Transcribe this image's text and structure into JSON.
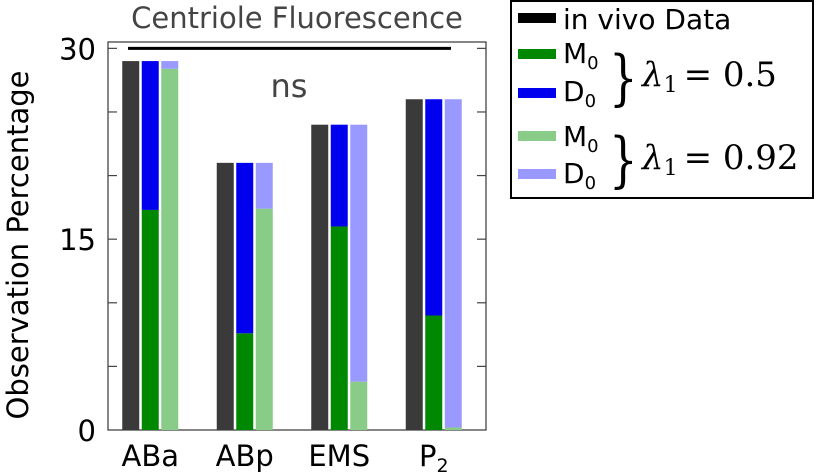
{
  "chart_data": {
    "type": "bar",
    "title": "Centriole Fluorescence",
    "ylabel": "Observation Percentage",
    "xlabel": "",
    "ylim": [
      0,
      30.5
    ],
    "yticks": [
      0,
      15,
      30
    ],
    "grid": false,
    "legend_position": "right",
    "categories": [
      "ABa",
      "ABp",
      "EMS",
      "P"
    ],
    "category_subscripts": [
      "",
      "",
      "",
      "2"
    ],
    "annotation": {
      "text": "ns",
      "line_value": 30
    },
    "series": [
      {
        "name": "in vivo Data",
        "color": "#3a3a3a",
        "values": [
          29,
          21,
          24,
          26
        ]
      },
      {
        "group": "λ1 = 0.5",
        "stack": [
          {
            "name": "M",
            "subscript": "0",
            "color": "#008800",
            "values": [
              17.3,
              7.6,
              16.0,
              9.0
            ]
          },
          {
            "name": "D",
            "subscript": "0",
            "color": "#0000ee",
            "values": [
              11.7,
              13.4,
              8.0,
              17.0
            ]
          }
        ]
      },
      {
        "group": "λ1 = 0.92",
        "stack": [
          {
            "name": "M",
            "subscript": "0",
            "color": "#88cc88",
            "values": [
              28.4,
              17.4,
              3.8,
              0.2
            ]
          },
          {
            "name": "D",
            "subscript": "0",
            "color": "#9999ff",
            "values": [
              0.6,
              3.6,
              20.2,
              25.8
            ]
          }
        ]
      }
    ]
  },
  "legend": {
    "in_vivo": "in vivo Data",
    "m0": "M",
    "d0": "D",
    "sub": "0",
    "group1_lambda": "λ",
    "group1_lambda_sub": "1",
    "group1_eq": "= 0.5",
    "group2_lambda": "λ",
    "group2_lambda_sub": "1",
    "group2_eq": "= 0.92"
  }
}
